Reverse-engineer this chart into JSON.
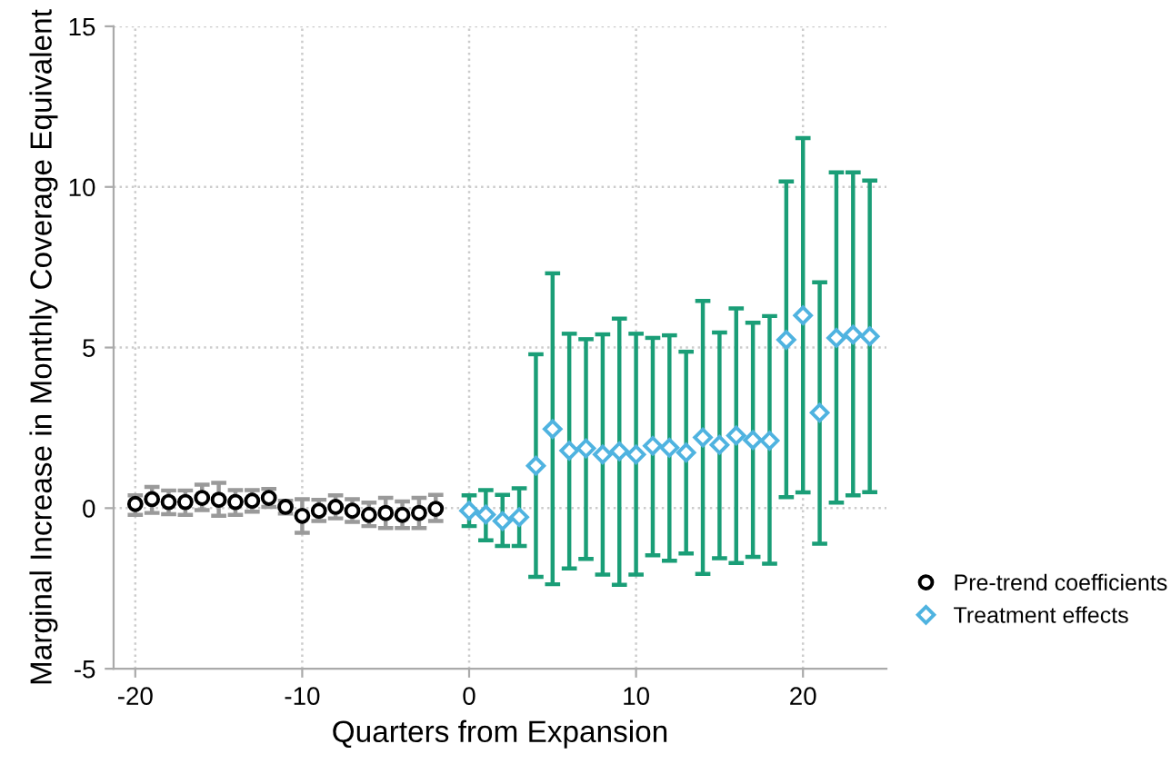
{
  "chart_data": {
    "type": "scatter",
    "xlabel": "Quarters from Expansion",
    "ylabel": "Marginal Increase in Monthly Coverage Equivalent",
    "xlim": [
      -21.3,
      25
    ],
    "ylim": [
      -5,
      15
    ],
    "xticks": [
      -20,
      -10,
      0,
      10,
      20
    ],
    "yticks": [
      -5,
      0,
      5,
      10,
      15
    ],
    "grid": true,
    "legend": "right",
    "series": [
      {
        "name": "Pre-trend coefficients",
        "color": "#000000",
        "marker": "circle",
        "x": [
          -20,
          -19,
          -18,
          -17,
          -16,
          -15,
          -14,
          -13,
          -12,
          -11,
          -10,
          -9,
          -8,
          -7,
          -6,
          -5,
          -4,
          -3,
          -2
        ],
        "values": [
          0.13,
          0.28,
          0.19,
          0.19,
          0.32,
          0.26,
          0.19,
          0.23,
          0.32,
          0.04,
          -0.24,
          -0.08,
          0.04,
          -0.08,
          -0.21,
          -0.15,
          -0.21,
          -0.15,
          -0.02
        ],
        "errors": [
          [
            -0.21,
            0.4
          ],
          [
            -0.15,
            0.66
          ],
          [
            -0.19,
            0.55
          ],
          [
            -0.21,
            0.55
          ],
          [
            -0.06,
            0.73
          ],
          [
            -0.24,
            0.79
          ],
          [
            -0.21,
            0.56
          ],
          [
            -0.11,
            0.56
          ],
          [
            0.04,
            0.6
          ],
          [
            -0.17,
            0.23
          ],
          [
            -0.77,
            0.28
          ],
          [
            -0.4,
            0.26
          ],
          [
            -0.32,
            0.4
          ],
          [
            -0.43,
            0.28
          ],
          [
            -0.56,
            0.17
          ],
          [
            -0.62,
            0.32
          ],
          [
            -0.62,
            0.21
          ],
          [
            -0.62,
            0.32
          ],
          [
            -0.4,
            0.41
          ]
        ]
      },
      {
        "name": "Treatment effects",
        "color": "#4fb3e0",
        "marker": "diamond",
        "x": [
          0,
          1,
          2,
          3,
          4,
          5,
          6,
          7,
          8,
          9,
          10,
          11,
          12,
          13,
          14,
          15,
          16,
          17,
          18,
          19,
          20,
          21,
          22,
          23,
          24
        ],
        "values": [
          -0.08,
          -0.2,
          -0.4,
          -0.28,
          1.32,
          2.46,
          1.79,
          1.86,
          1.67,
          1.77,
          1.67,
          1.94,
          1.88,
          1.73,
          2.2,
          1.97,
          2.26,
          2.12,
          2.1,
          5.24,
          6.0,
          2.97,
          5.3,
          5.4,
          5.35
        ],
        "errors": [
          [
            -0.56,
            0.4
          ],
          [
            -1.0,
            0.56
          ],
          [
            -1.18,
            0.41
          ],
          [
            -1.18,
            0.62
          ],
          [
            -2.14,
            4.79
          ],
          [
            -2.37,
            7.31
          ],
          [
            -1.88,
            5.43
          ],
          [
            -1.58,
            5.26
          ],
          [
            -2.07,
            5.41
          ],
          [
            -2.39,
            5.9
          ],
          [
            -2.07,
            5.43
          ],
          [
            -1.47,
            5.3
          ],
          [
            -1.64,
            5.38
          ],
          [
            -1.41,
            4.87
          ],
          [
            -2.05,
            6.45
          ],
          [
            -1.56,
            5.47
          ],
          [
            -1.71,
            6.22
          ],
          [
            -1.52,
            5.77
          ],
          [
            -1.73,
            5.98
          ],
          [
            0.34,
            10.17
          ],
          [
            0.49,
            11.52
          ],
          [
            -1.11,
            7.03
          ],
          [
            0.17,
            10.45
          ],
          [
            0.4,
            10.45
          ],
          [
            0.5,
            10.2
          ]
        ]
      }
    ]
  }
}
